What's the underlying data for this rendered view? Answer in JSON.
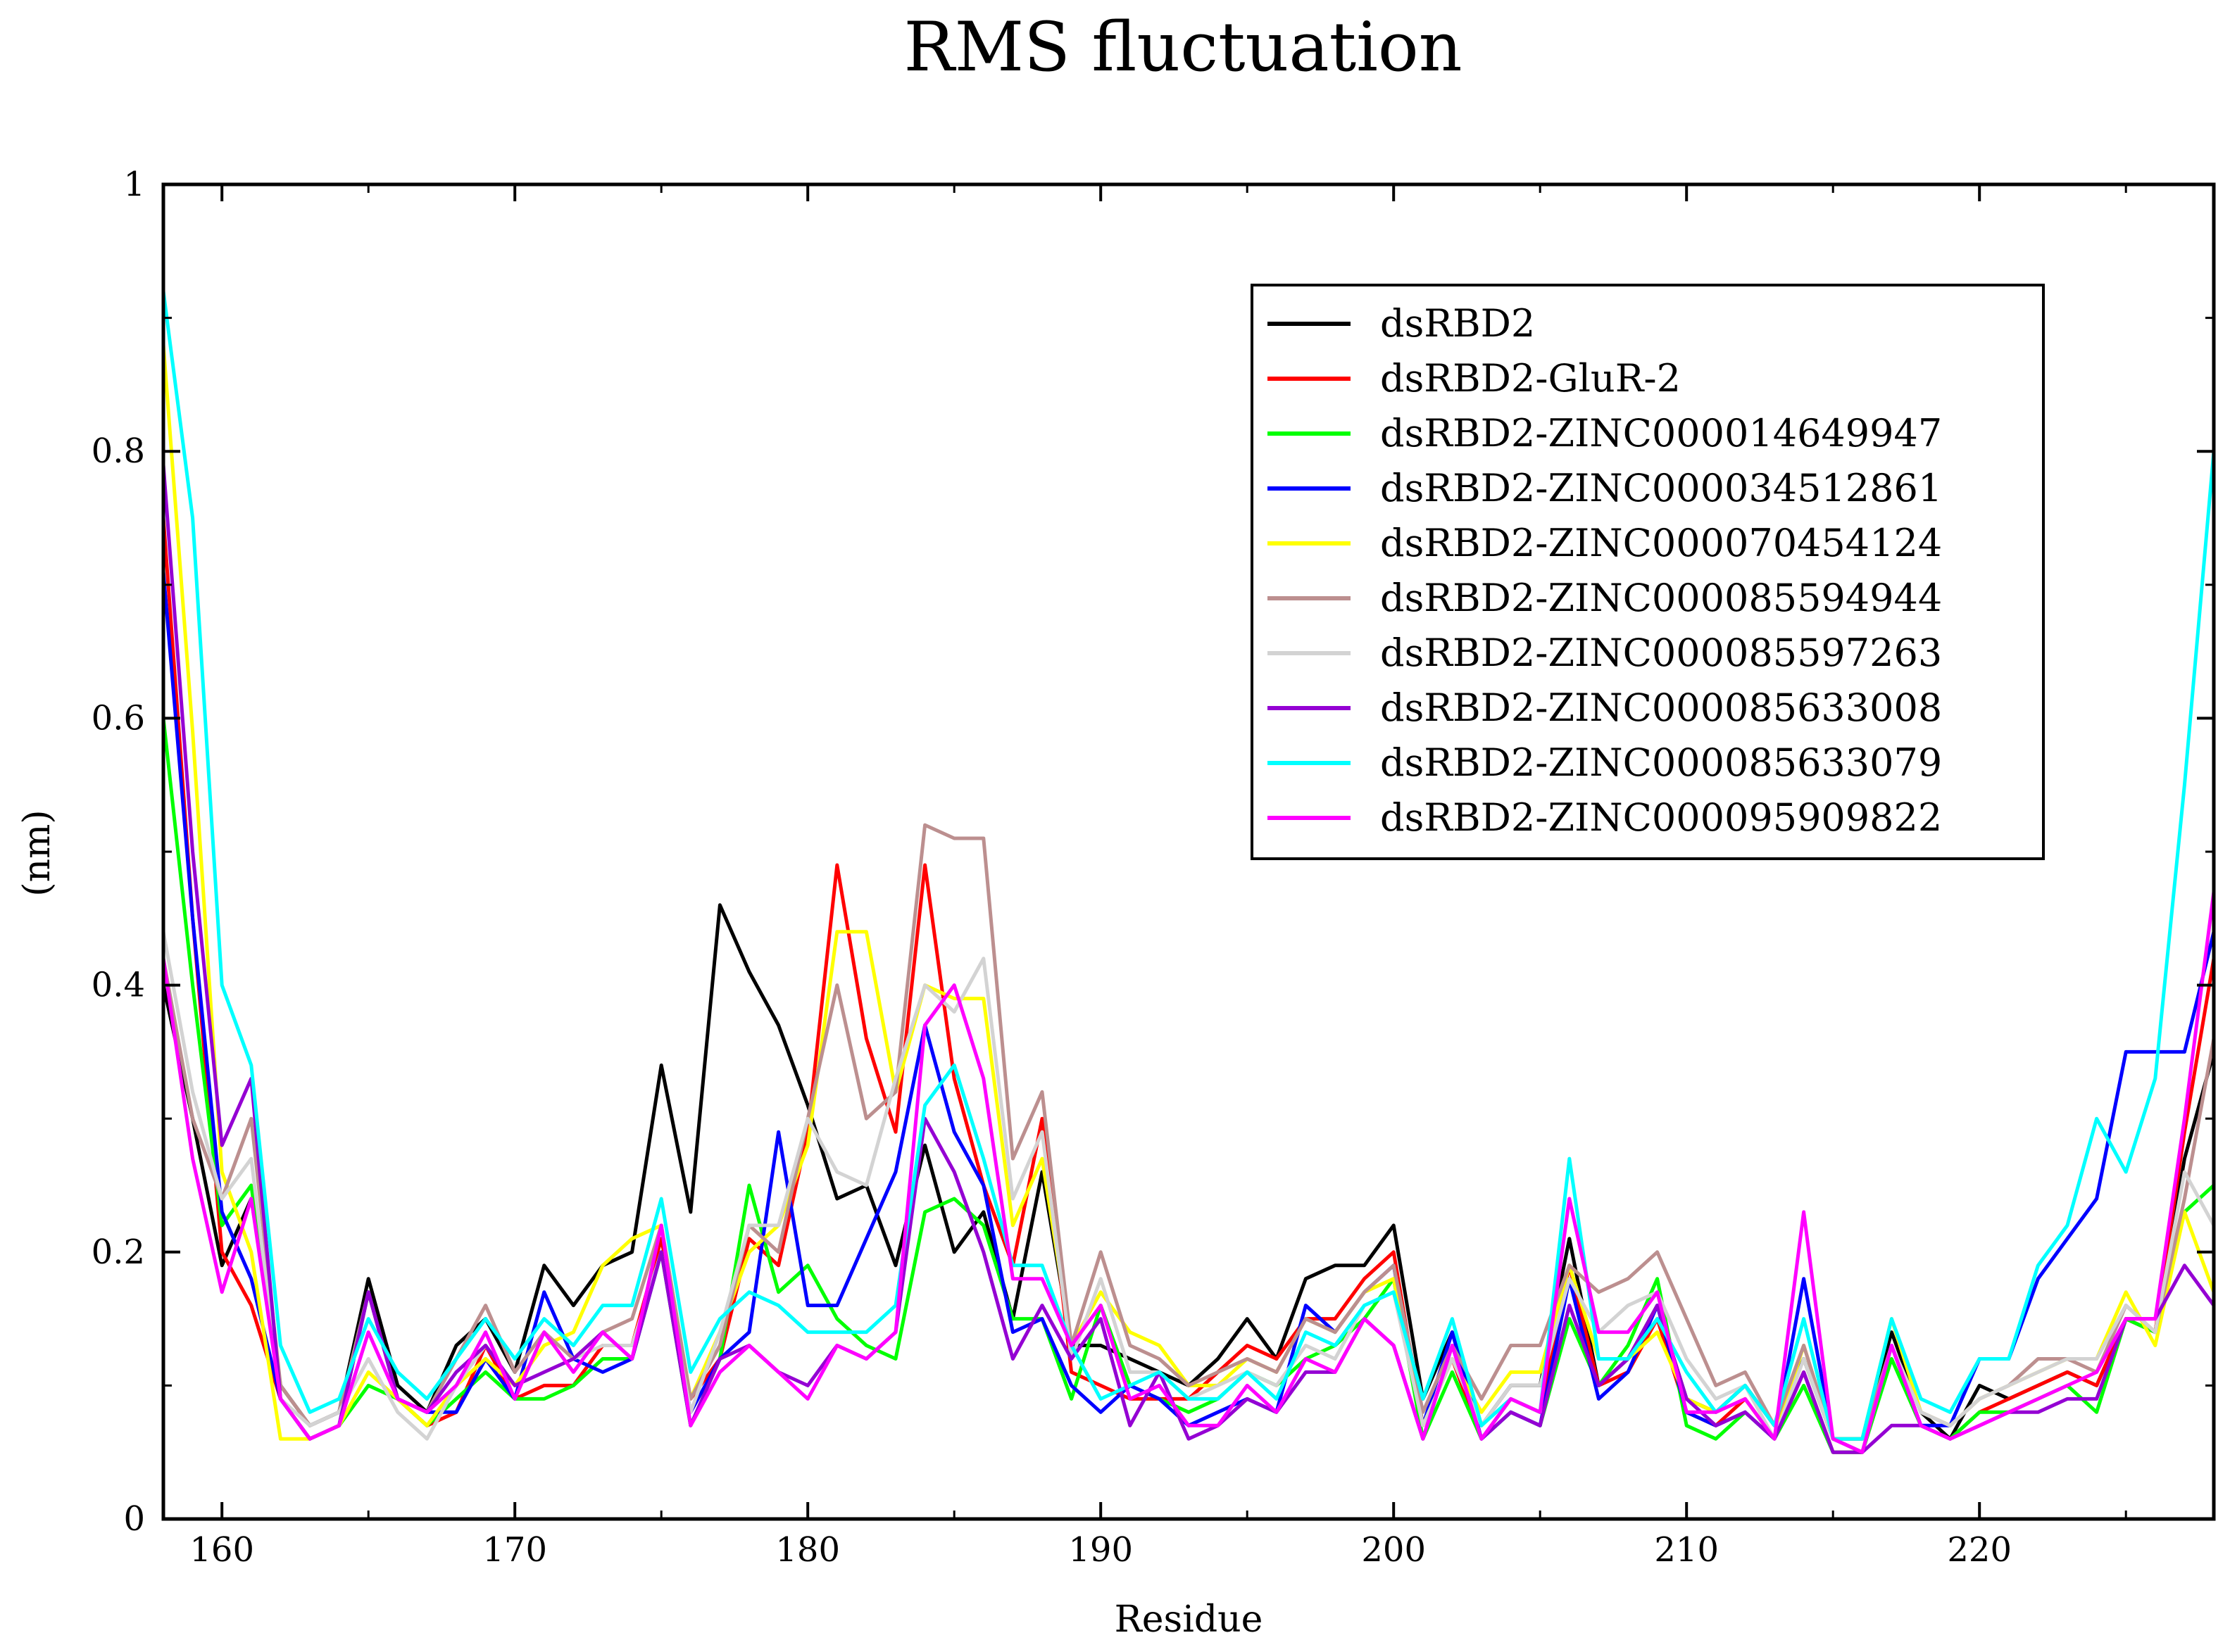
{
  "chart_data": {
    "type": "line",
    "title": "RMS fluctuation",
    "xlabel": "Residue",
    "ylabel": "(nm)",
    "xlim": [
      158,
      228
    ],
    "ylim": [
      0,
      1
    ],
    "xticks": [
      160,
      170,
      180,
      190,
      200,
      210,
      220
    ],
    "yticks": [
      0,
      0.2,
      0.4,
      0.6,
      0.8,
      1
    ],
    "ytick_labels": [
      "0",
      "0.2",
      "0.4",
      "0.6",
      "0.8",
      "1"
    ],
    "grid": false,
    "legend_position": "top-right",
    "x": [
      158,
      159,
      160,
      161,
      162,
      163,
      164,
      165,
      166,
      167,
      168,
      169,
      170,
      171,
      172,
      173,
      174,
      175,
      176,
      177,
      178,
      179,
      180,
      181,
      182,
      183,
      184,
      185,
      186,
      187,
      188,
      189,
      190,
      191,
      192,
      193,
      194,
      195,
      196,
      197,
      198,
      199,
      200,
      201,
      202,
      203,
      204,
      205,
      206,
      207,
      208,
      209,
      210,
      211,
      212,
      213,
      214,
      215,
      216,
      217,
      218,
      219,
      220,
      221,
      222,
      223,
      224,
      225,
      226,
      227,
      228
    ],
    "series": [
      {
        "name": "dsRBD2",
        "color": "#000000",
        "values": [
          0.4,
          0.3,
          0.19,
          0.24,
          0.1,
          0.07,
          0.08,
          0.18,
          0.1,
          0.08,
          0.13,
          0.15,
          0.11,
          0.19,
          0.16,
          0.19,
          0.2,
          0.34,
          0.23,
          0.46,
          0.41,
          0.37,
          0.31,
          0.24,
          0.25,
          0.19,
          0.28,
          0.2,
          0.23,
          0.15,
          0.26,
          0.13,
          0.13,
          0.12,
          0.11,
          0.1,
          0.12,
          0.15,
          0.12,
          0.18,
          0.19,
          0.19,
          0.22,
          0.09,
          0.14,
          0.07,
          0.1,
          0.1,
          0.21,
          0.1,
          0.12,
          0.16,
          0.09,
          0.08,
          0.1,
          0.07,
          0.12,
          0.06,
          0.06,
          0.14,
          0.08,
          0.06,
          0.1,
          0.09,
          0.1,
          0.11,
          0.1,
          0.15,
          0.14,
          0.27,
          0.35
        ]
      },
      {
        "name": "dsRBD2-GluR-2",
        "color": "#ff0000",
        "values": [
          0.75,
          0.45,
          0.2,
          0.16,
          0.09,
          0.06,
          0.07,
          0.17,
          0.09,
          0.07,
          0.08,
          0.13,
          0.09,
          0.1,
          0.1,
          0.13,
          0.13,
          0.21,
          0.09,
          0.12,
          0.21,
          0.19,
          0.29,
          0.49,
          0.36,
          0.29,
          0.49,
          0.33,
          0.25,
          0.19,
          0.3,
          0.11,
          0.1,
          0.09,
          0.09,
          0.09,
          0.11,
          0.13,
          0.12,
          0.15,
          0.15,
          0.18,
          0.2,
          0.07,
          0.12,
          0.06,
          0.09,
          0.08,
          0.19,
          0.1,
          0.11,
          0.15,
          0.08,
          0.07,
          0.09,
          0.06,
          0.11,
          0.05,
          0.05,
          0.13,
          0.07,
          0.06,
          0.08,
          0.09,
          0.1,
          0.11,
          0.1,
          0.15,
          0.14,
          0.29,
          0.42
        ]
      },
      {
        "name": "dsRBD2-ZINC000014649947",
        "color": "#00ff00",
        "values": [
          0.6,
          0.4,
          0.22,
          0.25,
          0.09,
          0.06,
          0.07,
          0.1,
          0.09,
          0.07,
          0.09,
          0.11,
          0.09,
          0.09,
          0.1,
          0.12,
          0.12,
          0.2,
          0.07,
          0.12,
          0.25,
          0.17,
          0.19,
          0.15,
          0.13,
          0.12,
          0.23,
          0.24,
          0.22,
          0.15,
          0.15,
          0.09,
          0.16,
          0.1,
          0.09,
          0.08,
          0.09,
          0.11,
          0.1,
          0.12,
          0.13,
          0.15,
          0.18,
          0.06,
          0.11,
          0.06,
          0.08,
          0.07,
          0.15,
          0.1,
          0.13,
          0.18,
          0.07,
          0.06,
          0.08,
          0.06,
          0.1,
          0.05,
          0.05,
          0.12,
          0.07,
          0.06,
          0.08,
          0.08,
          0.09,
          0.1,
          0.08,
          0.15,
          0.14,
          0.23,
          0.25
        ]
      },
      {
        "name": "dsRBD2-ZINC000034512861",
        "color": "#0000ff",
        "values": [
          0.71,
          0.45,
          0.23,
          0.18,
          0.09,
          0.06,
          0.07,
          0.17,
          0.09,
          0.08,
          0.08,
          0.12,
          0.09,
          0.17,
          0.12,
          0.11,
          0.12,
          0.2,
          0.08,
          0.12,
          0.14,
          0.29,
          0.16,
          0.16,
          0.21,
          0.26,
          0.37,
          0.29,
          0.25,
          0.14,
          0.15,
          0.1,
          0.08,
          0.1,
          0.09,
          0.07,
          0.08,
          0.09,
          0.08,
          0.16,
          0.14,
          0.17,
          0.19,
          0.07,
          0.14,
          0.06,
          0.08,
          0.07,
          0.18,
          0.09,
          0.11,
          0.16,
          0.08,
          0.07,
          0.08,
          0.06,
          0.18,
          0.06,
          0.05,
          0.13,
          0.07,
          0.07,
          0.12,
          0.12,
          0.18,
          0.21,
          0.24,
          0.35,
          0.35,
          0.35,
          0.44
        ]
      },
      {
        "name": "dsRBD2-ZINC000070454124",
        "color": "#ffff00",
        "values": [
          0.88,
          0.59,
          0.26,
          0.2,
          0.06,
          0.06,
          0.07,
          0.11,
          0.09,
          0.07,
          0.1,
          0.12,
          0.1,
          0.13,
          0.14,
          0.19,
          0.21,
          0.22,
          0.09,
          0.14,
          0.2,
          0.22,
          0.28,
          0.44,
          0.44,
          0.32,
          0.4,
          0.39,
          0.39,
          0.22,
          0.27,
          0.13,
          0.17,
          0.14,
          0.13,
          0.1,
          0.1,
          0.12,
          0.11,
          0.15,
          0.14,
          0.17,
          0.18,
          0.07,
          0.12,
          0.08,
          0.11,
          0.11,
          0.19,
          0.12,
          0.12,
          0.14,
          0.09,
          0.08,
          0.09,
          0.06,
          0.13,
          0.06,
          0.06,
          0.15,
          0.08,
          0.07,
          0.09,
          0.1,
          0.11,
          0.12,
          0.12,
          0.17,
          0.13,
          0.23,
          0.17
        ]
      },
      {
        "name": "dsRBD2-ZINC000085594944",
        "color": "#bc8f8f",
        "values": [
          0.42,
          0.3,
          0.24,
          0.3,
          0.1,
          0.07,
          0.08,
          0.17,
          0.09,
          0.08,
          0.12,
          0.16,
          0.11,
          0.14,
          0.12,
          0.14,
          0.15,
          0.22,
          0.09,
          0.13,
          0.22,
          0.2,
          0.3,
          0.4,
          0.3,
          0.32,
          0.52,
          0.51,
          0.51,
          0.27,
          0.32,
          0.13,
          0.2,
          0.13,
          0.12,
          0.1,
          0.11,
          0.12,
          0.11,
          0.15,
          0.14,
          0.17,
          0.19,
          0.08,
          0.13,
          0.09,
          0.13,
          0.13,
          0.19,
          0.17,
          0.18,
          0.2,
          0.15,
          0.1,
          0.11,
          0.07,
          0.13,
          0.06,
          0.06,
          0.13,
          0.08,
          0.07,
          0.09,
          0.1,
          0.12,
          0.12,
          0.11,
          0.16,
          0.14,
          0.24,
          0.36
        ]
      },
      {
        "name": "dsRBD2-ZINC000085597263",
        "color": "#d3d3d3",
        "values": [
          0.44,
          0.32,
          0.24,
          0.27,
          0.09,
          0.07,
          0.08,
          0.12,
          0.08,
          0.06,
          0.1,
          0.13,
          0.1,
          0.11,
          0.12,
          0.13,
          0.13,
          0.2,
          0.08,
          0.14,
          0.22,
          0.22,
          0.3,
          0.26,
          0.25,
          0.33,
          0.4,
          0.38,
          0.42,
          0.24,
          0.29,
          0.12,
          0.18,
          0.11,
          0.11,
          0.09,
          0.1,
          0.11,
          0.1,
          0.13,
          0.12,
          0.16,
          0.17,
          0.07,
          0.12,
          0.07,
          0.1,
          0.1,
          0.18,
          0.14,
          0.16,
          0.17,
          0.12,
          0.09,
          0.1,
          0.06,
          0.12,
          0.06,
          0.05,
          0.13,
          0.08,
          0.07,
          0.09,
          0.1,
          0.11,
          0.12,
          0.12,
          0.16,
          0.14,
          0.26,
          0.22
        ]
      },
      {
        "name": "dsRBD2-ZINC000085633008",
        "color": "#9400d3",
        "values": [
          0.79,
          0.5,
          0.28,
          0.33,
          0.09,
          0.06,
          0.07,
          0.17,
          0.09,
          0.08,
          0.11,
          0.13,
          0.1,
          0.11,
          0.12,
          0.14,
          0.12,
          0.2,
          0.07,
          0.12,
          0.13,
          0.11,
          0.1,
          0.13,
          0.12,
          0.14,
          0.3,
          0.26,
          0.2,
          0.12,
          0.16,
          0.12,
          0.15,
          0.07,
          0.11,
          0.06,
          0.07,
          0.09,
          0.08,
          0.11,
          0.11,
          0.15,
          0.13,
          0.06,
          0.13,
          0.06,
          0.08,
          0.07,
          0.16,
          0.1,
          0.12,
          0.16,
          0.09,
          0.07,
          0.08,
          0.06,
          0.11,
          0.05,
          0.05,
          0.07,
          0.07,
          0.06,
          0.07,
          0.08,
          0.08,
          0.09,
          0.09,
          0.15,
          0.15,
          0.19,
          0.16
        ]
      },
      {
        "name": "dsRBD2-ZINC000085633079",
        "color": "#00ffff",
        "values": [
          0.92,
          0.75,
          0.4,
          0.34,
          0.13,
          0.08,
          0.09,
          0.15,
          0.11,
          0.09,
          0.12,
          0.15,
          0.12,
          0.15,
          0.13,
          0.16,
          0.16,
          0.24,
          0.11,
          0.15,
          0.17,
          0.16,
          0.14,
          0.14,
          0.14,
          0.16,
          0.31,
          0.34,
          0.27,
          0.19,
          0.19,
          0.13,
          0.09,
          0.1,
          0.11,
          0.09,
          0.09,
          0.11,
          0.09,
          0.14,
          0.13,
          0.16,
          0.17,
          0.09,
          0.15,
          0.07,
          0.09,
          0.08,
          0.27,
          0.12,
          0.12,
          0.15,
          0.11,
          0.08,
          0.1,
          0.07,
          0.15,
          0.06,
          0.06,
          0.15,
          0.09,
          0.08,
          0.12,
          0.12,
          0.19,
          0.22,
          0.3,
          0.26,
          0.33,
          0.55,
          0.8
        ]
      },
      {
        "name": "dsRBD2-ZINC000095909822",
        "color": "#ff00ff",
        "values": [
          0.42,
          0.27,
          0.17,
          0.24,
          0.09,
          0.06,
          0.07,
          0.14,
          0.09,
          0.08,
          0.1,
          0.14,
          0.09,
          0.14,
          0.11,
          0.14,
          0.12,
          0.22,
          0.07,
          0.11,
          0.13,
          0.11,
          0.09,
          0.13,
          0.12,
          0.14,
          0.37,
          0.4,
          0.33,
          0.18,
          0.18,
          0.13,
          0.16,
          0.09,
          0.1,
          0.07,
          0.07,
          0.1,
          0.08,
          0.12,
          0.11,
          0.15,
          0.13,
          0.06,
          0.13,
          0.06,
          0.09,
          0.08,
          0.24,
          0.14,
          0.14,
          0.17,
          0.08,
          0.08,
          0.09,
          0.06,
          0.23,
          0.06,
          0.05,
          0.13,
          0.07,
          0.06,
          0.07,
          0.08,
          0.09,
          0.1,
          0.11,
          0.15,
          0.15,
          0.3,
          0.47
        ]
      }
    ]
  }
}
